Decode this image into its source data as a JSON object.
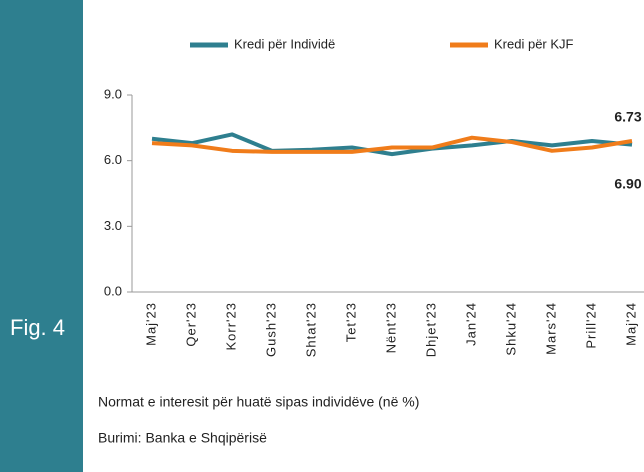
{
  "figure_label": "Fig. 4",
  "caption": "Normat e interesit për huatë sipas  individëve (në %)",
  "source": "Burimi: Banka e Shqipërisë",
  "chart_data": {
    "type": "line",
    "categories": [
      "Maj'23",
      "Qer'23",
      "Korr'23",
      "Gush'23",
      "Shtat'23",
      "Tet'23",
      "Nënt'23",
      "Dhjet'23",
      "Jan'24",
      "Shku'24",
      "Mars'24",
      "Prill'24",
      "Maj'24"
    ],
    "series": [
      {
        "name": "Kredi për Individë",
        "color": "#2e7f8f",
        "values": [
          7.0,
          6.8,
          7.2,
          6.45,
          6.5,
          6.6,
          6.3,
          6.55,
          6.7,
          6.9,
          6.7,
          6.9,
          6.73
        ],
        "value_labels": [
          null,
          null,
          null,
          null,
          null,
          null,
          null,
          null,
          null,
          null,
          null,
          null,
          "6.73"
        ]
      },
      {
        "name": "Kredi për KJF",
        "color": "#f07c1a",
        "values": [
          6.8,
          6.7,
          6.45,
          6.4,
          6.4,
          6.4,
          6.6,
          6.6,
          7.05,
          6.85,
          6.45,
          6.6,
          6.9
        ],
        "value_labels": [
          null,
          null,
          null,
          null,
          null,
          null,
          null,
          null,
          null,
          null,
          null,
          null,
          "6.90"
        ]
      }
    ],
    "ylim": [
      0,
      9
    ],
    "yticks": [
      {
        "value": 0,
        "label": "0.0"
      },
      {
        "value": 3,
        "label": "3.0"
      },
      {
        "value": 6,
        "label": "6.0"
      },
      {
        "value": 9,
        "label": "9.0"
      }
    ],
    "grid": false,
    "legend": "top"
  }
}
